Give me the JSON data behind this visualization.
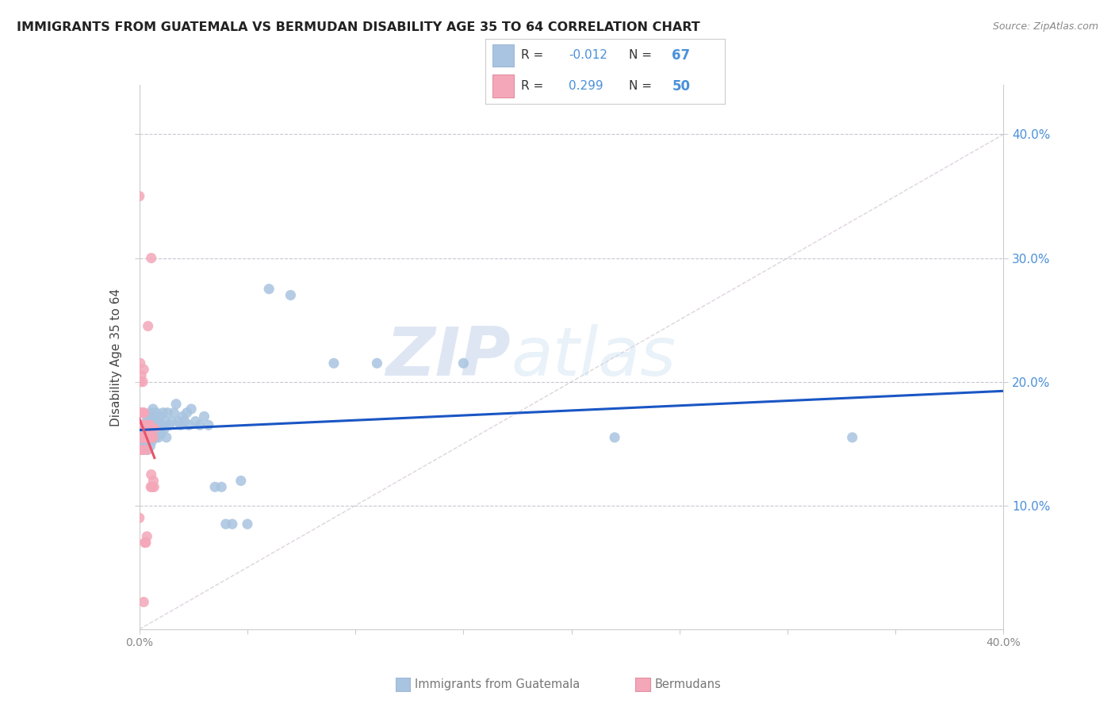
{
  "title": "IMMIGRANTS FROM GUATEMALA VS BERMUDAN DISABILITY AGE 35 TO 64 CORRELATION CHART",
  "source": "Source: ZipAtlas.com",
  "ylabel": "Disability Age 35 to 64",
  "xmin": 0.0,
  "xmax": 0.4,
  "ymin": 0.0,
  "ymax": 0.44,
  "yticks": [
    0.1,
    0.2,
    0.3,
    0.4
  ],
  "ytick_labels": [
    "10.0%",
    "20.0%",
    "30.0%",
    "40.0%"
  ],
  "xticks": [
    0.0,
    0.05,
    0.1,
    0.15,
    0.2,
    0.25,
    0.3,
    0.35,
    0.4
  ],
  "color_blue": "#a8c4e0",
  "color_pink": "#f4a7b9",
  "line_blue": "#1a56c4",
  "line_pink": "#e8546a",
  "line_diag": "#c8b8c8",
  "watermark_zip": "ZIP",
  "watermark_atlas": "atlas",
  "legend_r1_label": "R = ",
  "legend_r1_val": "-0.012",
  "legend_n1_label": "N = ",
  "legend_n1_val": "67",
  "legend_r2_label": "R =  ",
  "legend_r2_val": "0.299",
  "legend_n2_label": "N = ",
  "legend_n2_val": "50",
  "bottom_label1": "Immigrants from Guatemala",
  "bottom_label2": "Bermudans",
  "guatemala_x": [
    0.0008,
    0.001,
    0.0012,
    0.0015,
    0.0018,
    0.002,
    0.0022,
    0.0025,
    0.0028,
    0.003,
    0.0033,
    0.0035,
    0.0038,
    0.004,
    0.0042,
    0.0045,
    0.0048,
    0.005,
    0.0055,
    0.0058,
    0.006,
    0.0063,
    0.0065,
    0.0068,
    0.007,
    0.0075,
    0.0078,
    0.008,
    0.0085,
    0.0088,
    0.009,
    0.0095,
    0.01,
    0.0105,
    0.011,
    0.0115,
    0.012,
    0.0125,
    0.013,
    0.014,
    0.015,
    0.016,
    0.017,
    0.018,
    0.019,
    0.02,
    0.021,
    0.022,
    0.023,
    0.024,
    0.026,
    0.028,
    0.03,
    0.032,
    0.035,
    0.038,
    0.04,
    0.043,
    0.047,
    0.05,
    0.06,
    0.07,
    0.09,
    0.11,
    0.15,
    0.22,
    0.33
  ],
  "guatemala_y": [
    0.152,
    0.16,
    0.148,
    0.165,
    0.155,
    0.158,
    0.145,
    0.162,
    0.155,
    0.15,
    0.168,
    0.155,
    0.145,
    0.172,
    0.158,
    0.155,
    0.162,
    0.148,
    0.175,
    0.152,
    0.165,
    0.178,
    0.155,
    0.168,
    0.162,
    0.155,
    0.175,
    0.168,
    0.162,
    0.155,
    0.165,
    0.172,
    0.158,
    0.165,
    0.175,
    0.162,
    0.168,
    0.155,
    0.175,
    0.165,
    0.168,
    0.175,
    0.182,
    0.168,
    0.165,
    0.172,
    0.168,
    0.175,
    0.165,
    0.178,
    0.168,
    0.165,
    0.172,
    0.165,
    0.115,
    0.115,
    0.085,
    0.085,
    0.12,
    0.085,
    0.275,
    0.27,
    0.215,
    0.215,
    0.215,
    0.155,
    0.155
  ],
  "bermuda_x": [
    0.0,
    0.0,
    0.0,
    0.0,
    0.0002,
    0.0003,
    0.0004,
    0.0005,
    0.0006,
    0.0007,
    0.0008,
    0.0009,
    0.001,
    0.0011,
    0.0012,
    0.0013,
    0.0014,
    0.0015,
    0.0016,
    0.0017,
    0.0018,
    0.0019,
    0.002,
    0.0022,
    0.0024,
    0.0026,
    0.0028,
    0.003,
    0.0033,
    0.0036,
    0.0038,
    0.004,
    0.0043,
    0.0045,
    0.0048,
    0.005,
    0.0053,
    0.0055,
    0.0058,
    0.006,
    0.0063,
    0.0065,
    0.0068,
    0.007,
    0.0055,
    0.006,
    0.003,
    0.0035,
    0.0025,
    0.002
  ],
  "bermuda_y": [
    0.35,
    0.155,
    0.145,
    0.09,
    0.155,
    0.145,
    0.215,
    0.2,
    0.175,
    0.165,
    0.155,
    0.205,
    0.155,
    0.175,
    0.165,
    0.155,
    0.145,
    0.155,
    0.2,
    0.175,
    0.165,
    0.155,
    0.21,
    0.175,
    0.165,
    0.155,
    0.155,
    0.162,
    0.155,
    0.145,
    0.165,
    0.245,
    0.155,
    0.158,
    0.155,
    0.165,
    0.115,
    0.125,
    0.115,
    0.115,
    0.155,
    0.12,
    0.115,
    0.162,
    0.3,
    0.155,
    0.07,
    0.075,
    0.07,
    0.022
  ]
}
